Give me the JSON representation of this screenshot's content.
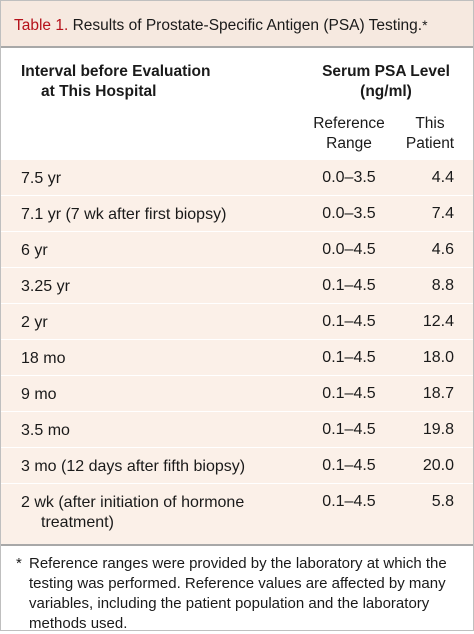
{
  "title": {
    "table_number": "Table 1.",
    "text": "Results of Prostate-Specific Antigen (PSA) Testing.",
    "footnote_marker": "*"
  },
  "header": {
    "interval_line1": "Interval before Evaluation",
    "interval_line2": "at This Hospital",
    "psa_line1": "Serum PSA Level",
    "psa_line2": "(ng/ml)",
    "reference_line1": "Reference",
    "reference_line2": "Range",
    "patient_line1": "This",
    "patient_line2": "Patient"
  },
  "rows": [
    {
      "interval": "7.5 yr",
      "reference": "0.0–3.5",
      "patient": "4.4"
    },
    {
      "interval": "7.1 yr (7 wk after first biopsy)",
      "reference": "0.0–3.5",
      "patient": "7.4"
    },
    {
      "interval": "6 yr",
      "reference": "0.0–4.5",
      "patient": "4.6"
    },
    {
      "interval": "3.25 yr",
      "reference": "0.1–4.5",
      "patient": "8.8"
    },
    {
      "interval": "2 yr",
      "reference": "0.1–4.5",
      "patient": "12.4"
    },
    {
      "interval": "18 mo",
      "reference": "0.1–4.5",
      "patient": "18.0"
    },
    {
      "interval": "9 mo",
      "reference": "0.1–4.5",
      "patient": "18.7"
    },
    {
      "interval": "3.5 mo",
      "reference": "0.1–4.5",
      "patient": "19.8"
    },
    {
      "interval": "3 mo (12 days after fifth biopsy)",
      "reference": "0.1–4.5",
      "patient": "20.0"
    },
    {
      "interval_line1": "2 wk (after initiation of hormone",
      "interval_line2": "treatment)",
      "reference": "0.1–4.5",
      "patient": "5.8"
    }
  ],
  "footnote": {
    "marker": "*",
    "text": "Reference ranges were provided by the laboratory at which the testing was performed. Reference values are affected by many variables, including the patient population and the laboratory methods used."
  },
  "colors": {
    "table_number": "#b5121b",
    "title_background": "#f6e9e0",
    "row_background": "#fbf0e8",
    "rule": "#a8a8a8"
  }
}
